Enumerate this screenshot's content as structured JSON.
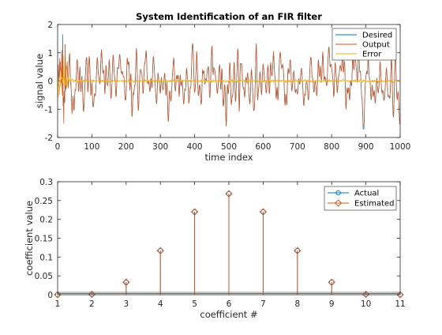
{
  "colors": {
    "desired": "#0072BD",
    "output": "#D95319",
    "error": "#EDB120",
    "actual": "#0072BD",
    "estimated": "#D95319"
  },
  "top": {
    "title": "System Identification of an FIR filter",
    "xlabel": "time index",
    "ylabel": "signal value",
    "xticks": [
      "0",
      "100",
      "200",
      "300",
      "400",
      "500",
      "600",
      "700",
      "800",
      "900",
      "1000"
    ],
    "yticks": [
      "-2",
      "-1",
      "0",
      "1",
      "2"
    ],
    "legend": [
      "Desired",
      "Output",
      "Error"
    ]
  },
  "bottom": {
    "xlabel": "coefficient #",
    "ylabel": "coefficient value",
    "xticks": [
      "1",
      "2",
      "3",
      "4",
      "5",
      "6",
      "7",
      "8",
      "9",
      "10",
      "11"
    ],
    "yticks": [
      "0",
      "0.05",
      "0.1",
      "0.15",
      "0.2",
      "0.25",
      "0.3"
    ],
    "legend": [
      "Actual",
      "Estimated"
    ]
  },
  "chart_data": [
    {
      "type": "line",
      "title": "System Identification of an FIR filter",
      "xlabel": "time index",
      "ylabel": "signal value",
      "xlim": [
        0,
        1000
      ],
      "ylim": [
        -2,
        2
      ],
      "legend_position": "top-right",
      "series": [
        {
          "name": "Desired",
          "n_points": 1000,
          "approx_std": 0.4,
          "note_peak": 1.65
        },
        {
          "name": "Output",
          "n_points": 1000,
          "approx_std": 0.4,
          "note_min": -1.6,
          "note_max": 1.3
        },
        {
          "name": "Error",
          "n_points": 1000,
          "approx_std": 0.05,
          "note_initial_peak": 0.9
        }
      ]
    },
    {
      "type": "stem",
      "xlabel": "coefficient #",
      "ylabel": "coefficient value",
      "xlim": [
        1,
        11
      ],
      "ylim": [
        0,
        0.3
      ],
      "legend_position": "top-right",
      "x": [
        1,
        2,
        3,
        4,
        5,
        6,
        7,
        8,
        9,
        10,
        11
      ],
      "series": [
        {
          "name": "Actual",
          "values": [
            0.0,
            0.001,
            0.033,
            0.117,
            0.22,
            0.268,
            0.22,
            0.117,
            0.033,
            0.001,
            0.0
          ]
        },
        {
          "name": "Estimated",
          "values": [
            0.0,
            0.001,
            0.033,
            0.117,
            0.22,
            0.268,
            0.22,
            0.117,
            0.033,
            0.001,
            0.0
          ]
        }
      ]
    }
  ]
}
